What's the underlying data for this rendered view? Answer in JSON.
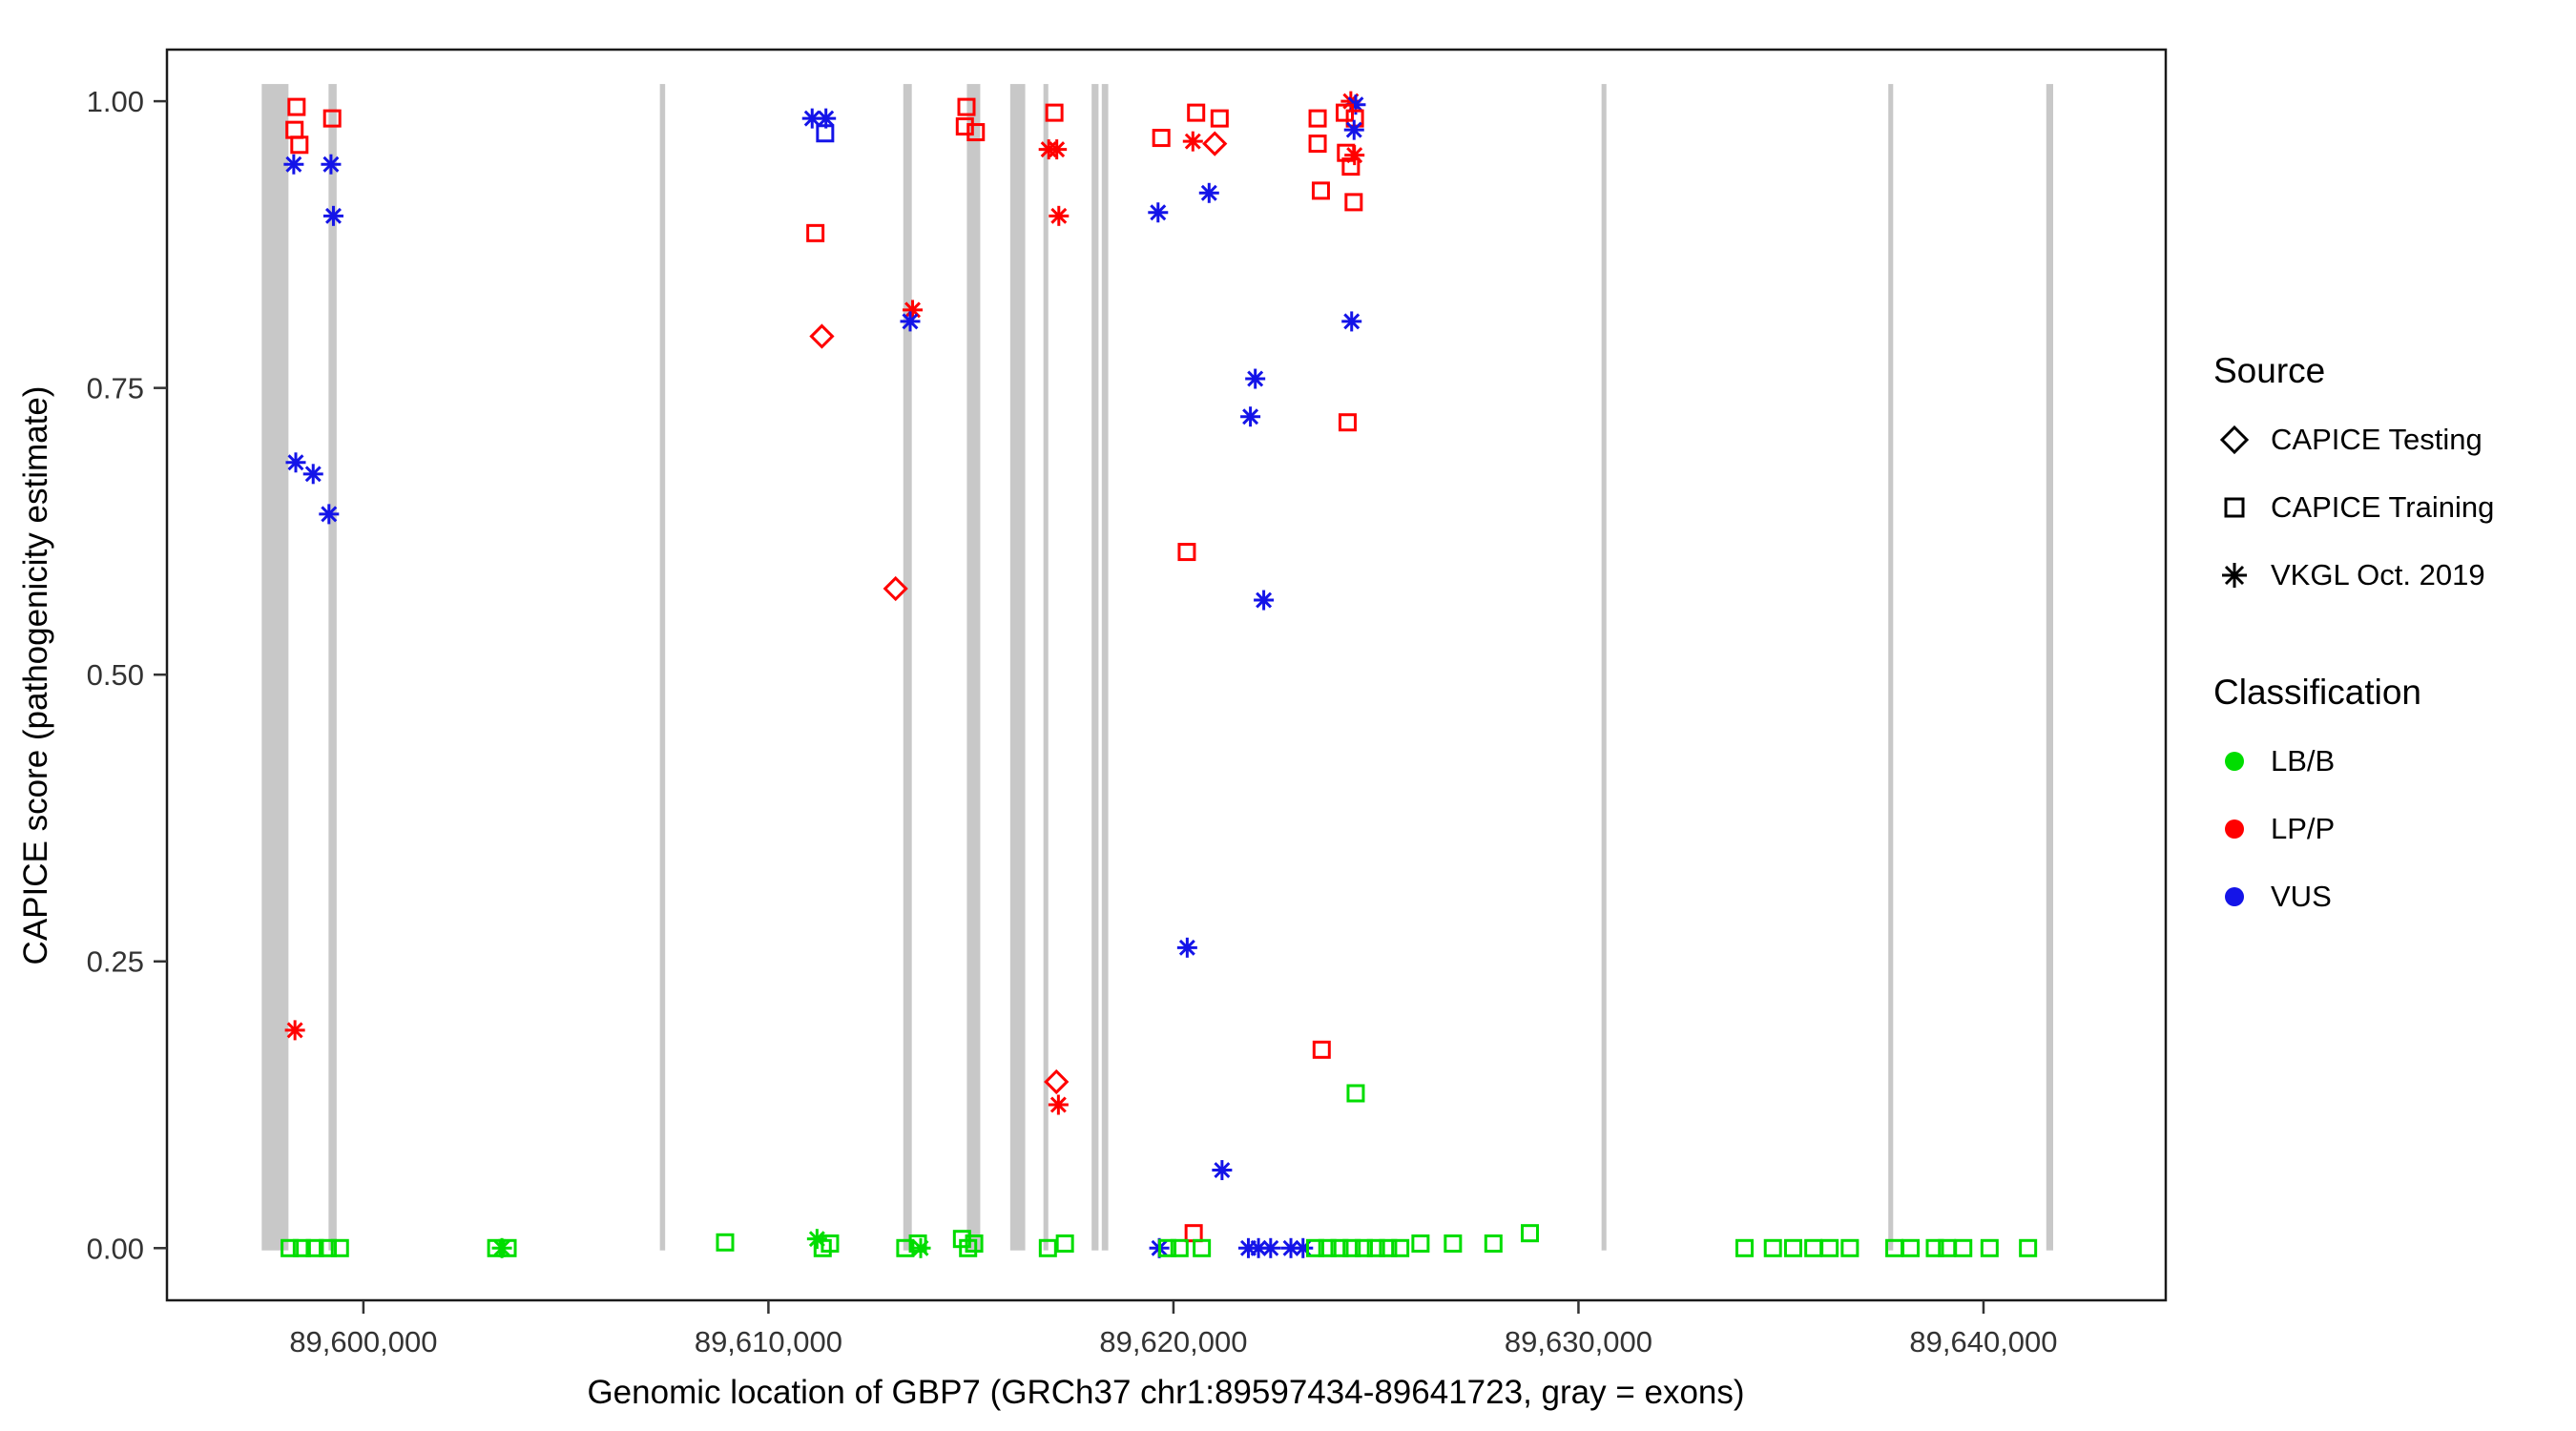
{
  "chart_data": {
    "type": "scatter",
    "title": "",
    "xlabel": "Genomic location of GBP7 (GRCh37 chr1:89597434-89641723, gray = exons)",
    "ylabel": "CAPICE score (pathogenicity estimate)",
    "xlim": [
      89595150,
      89644500
    ],
    "ylim": [
      -0.0455,
      1.045
    ],
    "grid": "off",
    "legend_position": "right",
    "x_ticks": [
      {
        "value": 89600000,
        "label": "89,600,000"
      },
      {
        "value": 89610000,
        "label": "89,610,000"
      },
      {
        "value": 89620000,
        "label": "89,620,000"
      },
      {
        "value": 89630000,
        "label": "89,630,000"
      },
      {
        "value": 89640000,
        "label": "89,640,000"
      }
    ],
    "y_ticks": [
      {
        "value": 0.0,
        "label": "0.00"
      },
      {
        "value": 0.25,
        "label": "0.25"
      },
      {
        "value": 0.5,
        "label": "0.50"
      },
      {
        "value": 0.75,
        "label": "0.75"
      },
      {
        "value": 1.0,
        "label": "1.00"
      }
    ],
    "exon_color": "#c8c8c8",
    "exons": [
      [
        89597490,
        89598150
      ],
      [
        89599140,
        89599340
      ],
      [
        89607320,
        89607450
      ],
      [
        89613330,
        89613540
      ],
      [
        89614900,
        89615230
      ],
      [
        89615970,
        89616340
      ],
      [
        89616790,
        89616910
      ],
      [
        89617980,
        89618150
      ],
      [
        89618230,
        89618390
      ],
      [
        89630570,
        89630690
      ],
      [
        89637650,
        89637770
      ],
      [
        89641550,
        89641720
      ]
    ],
    "classification_colors": {
      "LB/B": "#00dd00",
      "LP/P": "#ff0000",
      "VUS": "#1414e8"
    },
    "source_shapes": {
      "testing": "diamond",
      "training": "square",
      "vkgl": "asterisk"
    },
    "points_format": [
      "genomic_position",
      "capice_score",
      "source",
      "classification"
    ],
    "points": [
      [
        89598350,
        0.995,
        "training",
        "LP/P"
      ],
      [
        89598300,
        0.975,
        "training",
        "LP/P"
      ],
      [
        89598420,
        0.962,
        "training",
        "LP/P"
      ],
      [
        89599230,
        0.985,
        "training",
        "LP/P"
      ],
      [
        89598280,
        0.945,
        "vkgl",
        "VUS"
      ],
      [
        89599200,
        0.945,
        "vkgl",
        "VUS"
      ],
      [
        89599260,
        0.9,
        "vkgl",
        "VUS"
      ],
      [
        89598330,
        0.685,
        "vkgl",
        "VUS"
      ],
      [
        89598760,
        0.675,
        "vkgl",
        "VUS"
      ],
      [
        89599150,
        0.64,
        "vkgl",
        "VUS"
      ],
      [
        89598310,
        0.19,
        "vkgl",
        "LP/P"
      ],
      [
        89598180,
        0,
        "training",
        "LB/B"
      ],
      [
        89598480,
        0,
        "training",
        "LB/B"
      ],
      [
        89598800,
        0,
        "training",
        "LB/B"
      ],
      [
        89599120,
        0,
        "training",
        "LB/B"
      ],
      [
        89599420,
        0,
        "training",
        "LB/B"
      ],
      [
        89603280,
        0,
        "training",
        "LB/B"
      ],
      [
        89603420,
        0,
        "vkgl",
        "LB/B"
      ],
      [
        89603560,
        0,
        "training",
        "LB/B"
      ],
      [
        89608930,
        0.005,
        "training",
        "LB/B"
      ],
      [
        89611080,
        0.985,
        "vkgl",
        "VUS"
      ],
      [
        89611420,
        0.985,
        "vkgl",
        "VUS"
      ],
      [
        89611400,
        0.972,
        "training",
        "VUS"
      ],
      [
        89611160,
        0.885,
        "training",
        "LP/P"
      ],
      [
        89611320,
        0.795,
        "testing",
        "LP/P"
      ],
      [
        89611200,
        0.008,
        "vkgl",
        "LB/B"
      ],
      [
        89611340,
        0,
        "training",
        "LB/B"
      ],
      [
        89611520,
        0.004,
        "training",
        "LB/B"
      ],
      [
        89613140,
        0.575,
        "testing",
        "LP/P"
      ],
      [
        89613560,
        0.818,
        "vkgl",
        "LP/P"
      ],
      [
        89613500,
        0.808,
        "vkgl",
        "VUS"
      ],
      [
        89613380,
        0,
        "training",
        "LB/B"
      ],
      [
        89613690,
        0.004,
        "training",
        "LB/B"
      ],
      [
        89613760,
        0,
        "vkgl",
        "LB/B"
      ],
      [
        89614890,
        0.995,
        "training",
        "LP/P"
      ],
      [
        89614850,
        0.978,
        "training",
        "LP/P"
      ],
      [
        89615120,
        0.973,
        "training",
        "LP/P"
      ],
      [
        89614780,
        0.008,
        "training",
        "LB/B"
      ],
      [
        89614930,
        0,
        "training",
        "LB/B"
      ],
      [
        89615080,
        0.004,
        "training",
        "LB/B"
      ],
      [
        89617060,
        0.99,
        "training",
        "LP/P"
      ],
      [
        89616920,
        0.958,
        "vkgl",
        "LP/P"
      ],
      [
        89617120,
        0.958,
        "vkgl",
        "LP/P"
      ],
      [
        89617170,
        0.9,
        "vkgl",
        "LP/P"
      ],
      [
        89617110,
        0.145,
        "testing",
        "LP/P"
      ],
      [
        89617160,
        0.125,
        "vkgl",
        "LP/P"
      ],
      [
        89616900,
        0,
        "training",
        "LB/B"
      ],
      [
        89617320,
        0.004,
        "training",
        "LB/B"
      ],
      [
        89619700,
        0.968,
        "training",
        "LP/P"
      ],
      [
        89619620,
        0.903,
        "vkgl",
        "VUS"
      ],
      [
        89620560,
        0.99,
        "training",
        "LP/P"
      ],
      [
        89620480,
        0.965,
        "vkgl",
        "LP/P"
      ],
      [
        89621020,
        0.963,
        "testing",
        "LP/P"
      ],
      [
        89621140,
        0.985,
        "training",
        "LP/P"
      ],
      [
        89620880,
        0.92,
        "vkgl",
        "VUS"
      ],
      [
        89620330,
        0.607,
        "training",
        "LP/P"
      ],
      [
        89620340,
        0.262,
        "vkgl",
        "VUS"
      ],
      [
        89620500,
        0.013,
        "training",
        "LP/P"
      ],
      [
        89619650,
        0,
        "vkgl",
        "VUS"
      ],
      [
        89619850,
        0,
        "training",
        "LB/B"
      ],
      [
        89620150,
        0,
        "training",
        "LB/B"
      ],
      [
        89620700,
        0,
        "training",
        "LB/B"
      ],
      [
        89622020,
        0.758,
        "vkgl",
        "VUS"
      ],
      [
        89621900,
        0.725,
        "vkgl",
        "VUS"
      ],
      [
        89622230,
        0.565,
        "vkgl",
        "VUS"
      ],
      [
        89621200,
        0.068,
        "vkgl",
        "VUS"
      ],
      [
        89621850,
        0,
        "vkgl",
        "VUS"
      ],
      [
        89622100,
        0,
        "vkgl",
        "VUS"
      ],
      [
        89622400,
        0,
        "vkgl",
        "VUS"
      ],
      [
        89622900,
        0,
        "vkgl",
        "VUS"
      ],
      [
        89623200,
        0,
        "vkgl",
        "VUS"
      ],
      [
        89623560,
        0.985,
        "training",
        "LP/P"
      ],
      [
        89623560,
        0.963,
        "training",
        "LP/P"
      ],
      [
        89623640,
        0.922,
        "training",
        "LP/P"
      ],
      [
        89623660,
        0.173,
        "training",
        "LP/P"
      ],
      [
        89624380,
        1,
        "vkgl",
        "LP/P"
      ],
      [
        89624500,
        0.997,
        "vkgl",
        "VUS"
      ],
      [
        89624230,
        0.99,
        "training",
        "LP/P"
      ],
      [
        89624480,
        0.985,
        "training",
        "LP/P"
      ],
      [
        89624460,
        0.975,
        "vkgl",
        "VUS"
      ],
      [
        89624260,
        0.955,
        "training",
        "LP/P"
      ],
      [
        89624470,
        0.953,
        "vkgl",
        "LP/P"
      ],
      [
        89624380,
        0.943,
        "training",
        "LP/P"
      ],
      [
        89624450,
        0.912,
        "training",
        "LP/P"
      ],
      [
        89624400,
        0.808,
        "vkgl",
        "VUS"
      ],
      [
        89624300,
        0.72,
        "training",
        "LP/P"
      ],
      [
        89624500,
        0.135,
        "training",
        "LB/B"
      ],
      [
        89623500,
        0,
        "training",
        "LB/B"
      ],
      [
        89623800,
        0,
        "training",
        "LB/B"
      ],
      [
        89624100,
        0,
        "training",
        "LB/B"
      ],
      [
        89624400,
        0,
        "training",
        "LB/B"
      ],
      [
        89624700,
        0,
        "training",
        "LB/B"
      ],
      [
        89625000,
        0,
        "training",
        "LB/B"
      ],
      [
        89625300,
        0,
        "training",
        "LB/B"
      ],
      [
        89625600,
        0,
        "training",
        "LB/B"
      ],
      [
        89626100,
        0.004,
        "training",
        "LB/B"
      ],
      [
        89626900,
        0.004,
        "training",
        "LB/B"
      ],
      [
        89627900,
        0.004,
        "training",
        "LB/B"
      ],
      [
        89628800,
        0.013,
        "training",
        "LB/B"
      ],
      [
        89634100,
        0,
        "training",
        "LB/B"
      ],
      [
        89634800,
        0,
        "training",
        "LB/B"
      ],
      [
        89635300,
        0,
        "training",
        "LB/B"
      ],
      [
        89635800,
        0,
        "training",
        "LB/B"
      ],
      [
        89636200,
        0,
        "training",
        "LB/B"
      ],
      [
        89636700,
        0,
        "training",
        "LB/B"
      ],
      [
        89637800,
        0,
        "training",
        "LB/B"
      ],
      [
        89638200,
        0,
        "training",
        "LB/B"
      ],
      [
        89638800,
        0,
        "training",
        "LB/B"
      ],
      [
        89639100,
        0,
        "training",
        "LB/B"
      ],
      [
        89639500,
        0,
        "training",
        "LB/B"
      ],
      [
        89640150,
        0,
        "training",
        "LB/B"
      ],
      [
        89641100,
        0,
        "training",
        "LB/B"
      ]
    ],
    "legend": {
      "source": {
        "title": "Source",
        "items": [
          {
            "label": "CAPICE Testing",
            "shape": "diamond"
          },
          {
            "label": "CAPICE Training",
            "shape": "square"
          },
          {
            "label": "VKGL Oct. 2019",
            "shape": "asterisk"
          }
        ]
      },
      "classification": {
        "title": "Classification",
        "items": [
          {
            "label": "LB/B",
            "color": "#00dd00"
          },
          {
            "label": "LP/P",
            "color": "#ff0000"
          },
          {
            "label": "VUS",
            "color": "#1414e8"
          }
        ]
      }
    }
  }
}
